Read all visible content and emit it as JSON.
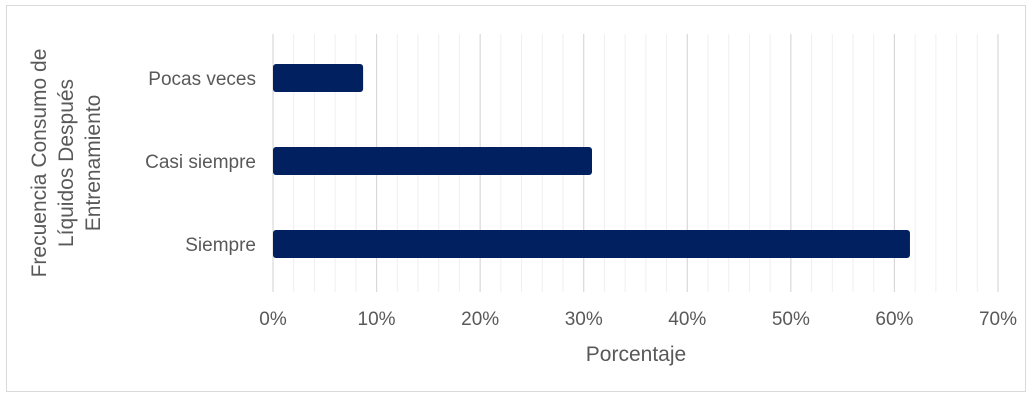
{
  "chart_data": {
    "type": "bar",
    "orientation": "horizontal",
    "categories": [
      "Pocas veces",
      "Casi siempre",
      "Siempre"
    ],
    "series": [
      {
        "values": [
          8.7,
          30.8,
          61.5
        ]
      }
    ],
    "xlabel": "Porcentaje",
    "ylabel_lines": [
      "Frecuencia Consumo de",
      "Líquidos Después",
      "Entrenamiento"
    ],
    "xticks": [
      "0%",
      "10%",
      "20%",
      "30%",
      "40%",
      "50%",
      "60%",
      "70%"
    ],
    "xlim": [
      0,
      70
    ],
    "grid": true,
    "bar_color": "#002060"
  }
}
